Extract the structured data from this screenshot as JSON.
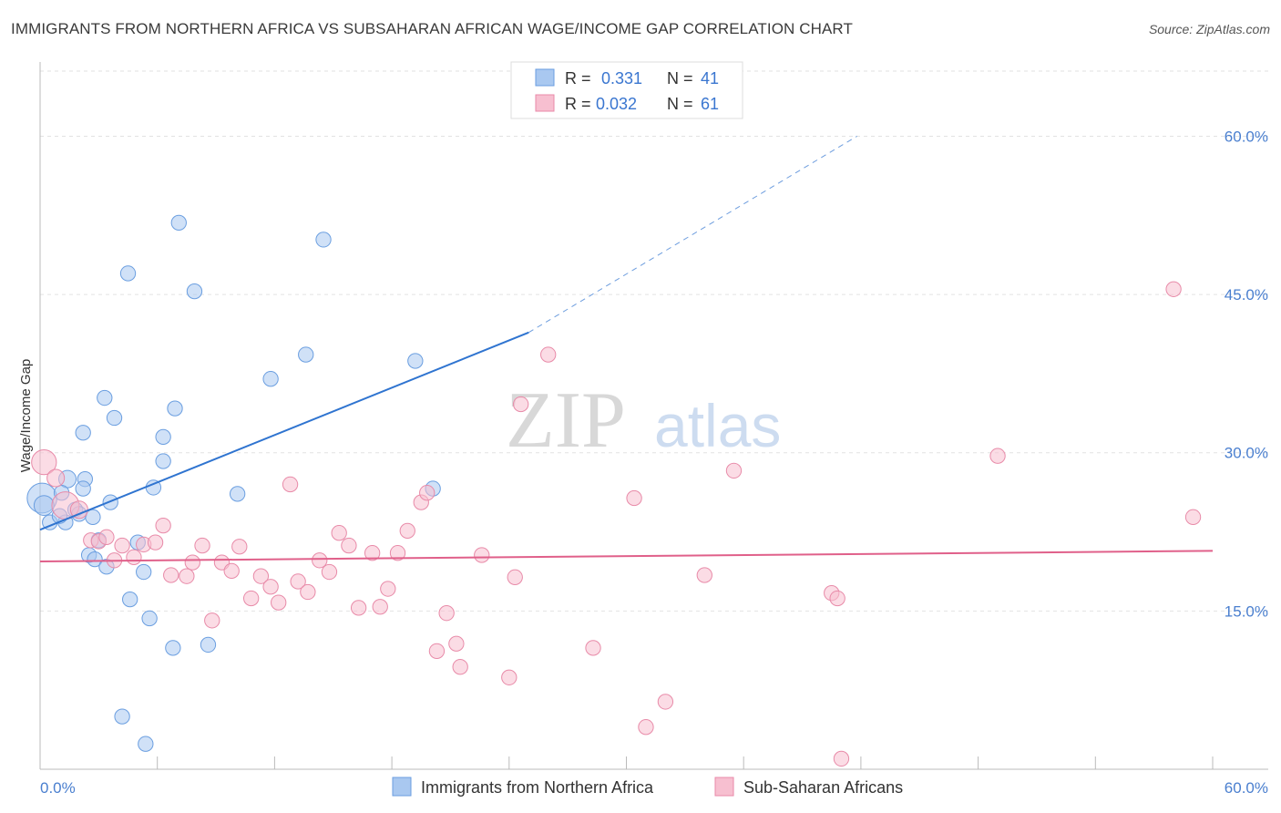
{
  "header": {
    "title": "IMMIGRANTS FROM NORTHERN AFRICA VS SUBSAHARAN AFRICAN WAGE/INCOME GAP CORRELATION CHART",
    "source": "Source: ZipAtlas.com"
  },
  "watermark": {
    "zip": "ZIP",
    "atlas": "atlas"
  },
  "chart_data": {
    "type": "scatter",
    "ylabel": "Wage/Income Gap",
    "xlim": [
      0,
      60
    ],
    "ylim": [
      0,
      66
    ],
    "x_tick_labels": [
      "0.0%",
      "60.0%"
    ],
    "y_ticks": [
      15,
      30,
      45,
      60
    ],
    "y_tick_labels": [
      "15.0%",
      "30.0%",
      "45.0%",
      "60.0%"
    ],
    "grid": true,
    "legend_position": "top-center and bottom",
    "colors": {
      "blue": "#a9c8f0",
      "blue_stroke": "#6a9ee0",
      "blue_line": "#2f74d0",
      "pink": "#f7bfd0",
      "pink_stroke": "#e88aa8",
      "pink_line": "#e0608a",
      "tick_text": "#4a7fcf"
    },
    "stats": [
      {
        "r_label": "R =",
        "r": "0.331",
        "n_label": "N =",
        "n": "41"
      },
      {
        "r_label": "R =",
        "r": "0.032",
        "n_label": "N =",
        "n": "61"
      }
    ],
    "series": [
      {
        "name": "Immigrants from Northern Africa",
        "color": "blue",
        "trend": {
          "x": [
            0,
            25
          ],
          "y": [
            22.7,
            41.4
          ],
          "extended_to": [
            41.8,
            60.0
          ]
        },
        "points": [
          [
            0.1,
            25.7,
            24
          ],
          [
            0.2,
            25.0,
            16
          ],
          [
            0.5,
            23.4,
            12
          ],
          [
            1.4,
            27.5,
            14
          ],
          [
            1.1,
            26.2,
            12
          ],
          [
            2.3,
            27.5,
            12
          ],
          [
            1.8,
            24.6,
            12
          ],
          [
            2.0,
            24.2,
            12
          ],
          [
            2.2,
            26.6,
            12
          ],
          [
            1.3,
            23.4,
            12
          ],
          [
            2.7,
            23.9,
            12
          ],
          [
            2.5,
            20.3,
            12
          ],
          [
            2.8,
            19.9,
            12
          ],
          [
            3.0,
            21.7,
            12
          ],
          [
            3.4,
            19.2,
            12
          ],
          [
            3.6,
            25.3,
            12
          ],
          [
            3.3,
            35.2,
            12
          ],
          [
            3.8,
            33.3,
            12
          ],
          [
            2.2,
            31.9,
            12
          ],
          [
            4.5,
            47.0,
            12
          ],
          [
            5.0,
            21.5,
            12
          ],
          [
            5.3,
            18.7,
            12
          ],
          [
            4.6,
            16.1,
            12
          ],
          [
            5.6,
            14.3,
            12
          ],
          [
            5.8,
            26.7,
            12
          ],
          [
            6.3,
            31.5,
            12
          ],
          [
            6.3,
            29.2,
            12
          ],
          [
            6.8,
            11.5,
            12
          ],
          [
            6.9,
            34.2,
            12
          ],
          [
            7.1,
            51.8,
            12
          ],
          [
            7.9,
            45.3,
            12
          ],
          [
            8.6,
            11.8,
            12
          ],
          [
            10.1,
            26.1,
            12
          ],
          [
            11.8,
            37.0,
            12
          ],
          [
            13.6,
            39.3,
            12
          ],
          [
            14.5,
            50.2,
            12
          ],
          [
            19.2,
            38.7,
            12
          ],
          [
            20.1,
            26.6,
            12
          ],
          [
            4.2,
            5.0,
            12
          ],
          [
            5.4,
            2.4,
            12
          ],
          [
            1.0,
            24.0,
            12
          ]
        ]
      },
      {
        "name": "Sub-Saharan Africans",
        "color": "pink",
        "trend": {
          "x": [
            0,
            60
          ],
          "y": [
            19.7,
            20.7
          ]
        },
        "points": [
          [
            0.2,
            29.1,
            20
          ],
          [
            0.8,
            27.6,
            14
          ],
          [
            1.3,
            25.0,
            22
          ],
          [
            2.0,
            24.6,
            14
          ],
          [
            2.6,
            21.7,
            12
          ],
          [
            3.0,
            21.6,
            12
          ],
          [
            3.4,
            22.0,
            12
          ],
          [
            3.8,
            19.8,
            12
          ],
          [
            4.2,
            21.2,
            12
          ],
          [
            4.8,
            20.1,
            12
          ],
          [
            5.3,
            21.3,
            12
          ],
          [
            5.9,
            21.5,
            12
          ],
          [
            6.3,
            23.1,
            12
          ],
          [
            6.7,
            18.4,
            12
          ],
          [
            7.5,
            18.3,
            12
          ],
          [
            7.8,
            19.6,
            12
          ],
          [
            8.3,
            21.2,
            12
          ],
          [
            8.8,
            14.1,
            12
          ],
          [
            9.3,
            19.6,
            12
          ],
          [
            9.8,
            18.8,
            12
          ],
          [
            10.2,
            21.1,
            12
          ],
          [
            10.8,
            16.2,
            12
          ],
          [
            11.3,
            18.3,
            12
          ],
          [
            11.8,
            17.3,
            12
          ],
          [
            12.2,
            15.8,
            12
          ],
          [
            12.8,
            27.0,
            12
          ],
          [
            13.2,
            17.8,
            12
          ],
          [
            13.7,
            16.8,
            12
          ],
          [
            14.3,
            19.8,
            12
          ],
          [
            14.8,
            18.7,
            12
          ],
          [
            15.3,
            22.4,
            12
          ],
          [
            15.8,
            21.2,
            12
          ],
          [
            16.3,
            15.3,
            12
          ],
          [
            17.0,
            20.5,
            12
          ],
          [
            17.4,
            15.4,
            12
          ],
          [
            17.8,
            17.1,
            12
          ],
          [
            18.3,
            20.5,
            12
          ],
          [
            18.8,
            22.6,
            12
          ],
          [
            19.5,
            25.3,
            12
          ],
          [
            19.8,
            26.2,
            12
          ],
          [
            20.3,
            11.2,
            12
          ],
          [
            20.8,
            14.8,
            12
          ],
          [
            21.5,
            9.7,
            12
          ],
          [
            21.3,
            11.9,
            12
          ],
          [
            22.6,
            20.3,
            12
          ],
          [
            24.0,
            8.7,
            12
          ],
          [
            24.3,
            18.2,
            12
          ],
          [
            24.6,
            34.6,
            12
          ],
          [
            26.0,
            39.3,
            12
          ],
          [
            28.3,
            11.5,
            12
          ],
          [
            30.4,
            25.7,
            12
          ],
          [
            31.0,
            4.0,
            12
          ],
          [
            32.0,
            6.4,
            12
          ],
          [
            34.0,
            18.4,
            12
          ],
          [
            35.5,
            28.3,
            12
          ],
          [
            40.5,
            16.7,
            12
          ],
          [
            40.8,
            16.2,
            12
          ],
          [
            41.0,
            1.0,
            12
          ],
          [
            49.0,
            29.7,
            12
          ],
          [
            58.0,
            45.5,
            12
          ],
          [
            59.0,
            23.9,
            12
          ]
        ]
      }
    ]
  }
}
